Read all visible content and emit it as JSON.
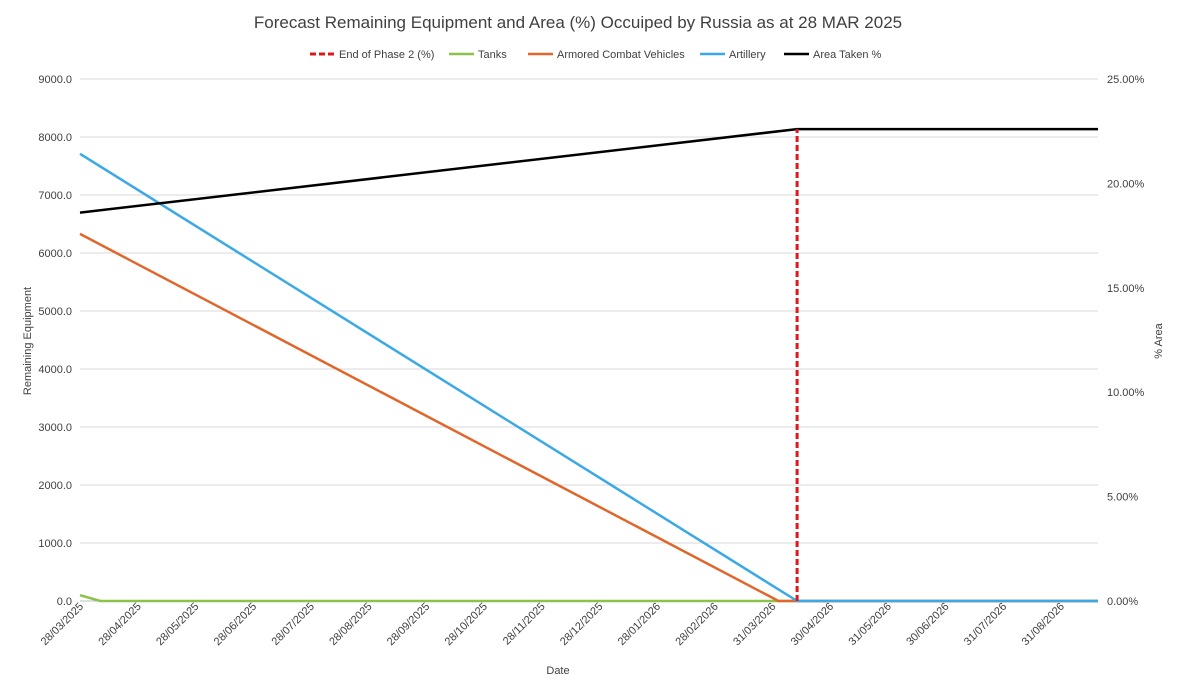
{
  "chart_data": {
    "type": "line",
    "title": "Forecast Remaining Equipment and Area (%) Occuiped by Russia as at 28 MAR 2025",
    "xlabel": "Date",
    "ylabel": "Remaining Equipment",
    "y2label": "% Area",
    "ylim": [
      0,
      9000
    ],
    "y2lim": [
      0,
      25
    ],
    "y_ticks": [
      "0.0",
      "1000.0",
      "2000.0",
      "3000.0",
      "4000.0",
      "5000.0",
      "6000.0",
      "7000.0",
      "8000.0",
      "9000.0"
    ],
    "y2_ticks": [
      "0.00%",
      "5.00%",
      "10.00%",
      "15.00%",
      "20.00%",
      "25.00%"
    ],
    "x_ticks": [
      "28/03/2025",
      "28/04/2025",
      "28/05/2025",
      "28/06/2025",
      "28/07/2025",
      "28/08/2025",
      "28/09/2025",
      "28/10/2025",
      "28/11/2025",
      "28/12/2025",
      "28/01/2026",
      "28/02/2026",
      "31/03/2026",
      "30/04/2026",
      "31/05/2026",
      "30/06/2026",
      "31/07/2026",
      "31/08/2026"
    ],
    "x_domain_days": [
      0,
      548
    ],
    "grid": true,
    "legend_position": "top",
    "series": [
      {
        "name": "End of Phase 2 (%)",
        "axis": "y2",
        "style": "dashed",
        "color": "#e0161b",
        "x_days": [
          386,
          386
        ],
        "values": [
          0,
          22.6
        ]
      },
      {
        "name": "Tanks",
        "axis": "y",
        "style": "solid",
        "color": "#8bc34a",
        "x_days": [
          0,
          11,
          386,
          548
        ],
        "values": [
          100,
          0,
          0,
          0
        ]
      },
      {
        "name": "Armored Combat Vehicles",
        "axis": "y",
        "style": "solid",
        "color": "#e0662b",
        "x_days": [
          0,
          376,
          548
        ],
        "values": [
          6330,
          0,
          0
        ]
      },
      {
        "name": "Artillery",
        "axis": "y",
        "style": "solid",
        "color": "#3aa9e6",
        "x_days": [
          0,
          386,
          548
        ],
        "values": [
          7710,
          0,
          0
        ]
      },
      {
        "name": "Area Taken %",
        "axis": "y2",
        "style": "solid",
        "color": "#000000",
        "x_days": [
          0,
          386,
          548
        ],
        "values": [
          18.6,
          22.6,
          22.6
        ]
      }
    ]
  }
}
